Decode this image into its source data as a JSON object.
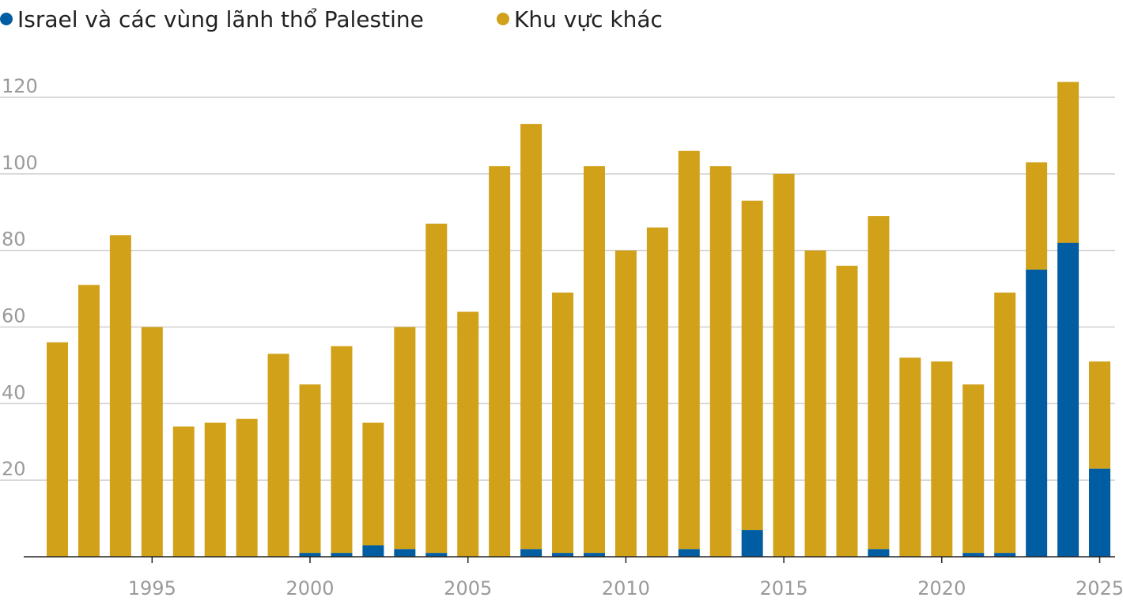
{
  "legend": {
    "israel_label": "Israel và các vùng lãnh thổ Palestine",
    "other_label": "Khu vực khác",
    "israel_color": "#005da2",
    "other_color": "#d1a11a"
  },
  "chart_data": {
    "type": "bar",
    "stacked": true,
    "categories": [
      1992,
      1993,
      1994,
      1995,
      1996,
      1997,
      1998,
      1999,
      2000,
      2001,
      2002,
      2003,
      2004,
      2005,
      2006,
      2007,
      2008,
      2009,
      2010,
      2011,
      2012,
      2013,
      2014,
      2015,
      2016,
      2017,
      2018,
      2019,
      2020,
      2021,
      2022,
      2023,
      2024,
      2025
    ],
    "series": [
      {
        "name": "Israel và các vùng lãnh thổ Palestine",
        "color": "#005da2",
        "values": [
          0,
          0,
          0,
          0,
          0,
          0,
          0,
          0,
          1,
          1,
          3,
          2,
          1,
          0,
          0,
          2,
          1,
          1,
          0,
          0,
          2,
          0,
          7,
          0,
          0,
          0,
          2,
          0,
          0,
          1,
          1,
          75,
          82,
          23
        ]
      },
      {
        "name": "Khu vực khác",
        "color": "#d1a11a",
        "values": [
          56,
          71,
          84,
          60,
          34,
          35,
          36,
          53,
          44,
          54,
          32,
          58,
          86,
          64,
          102,
          111,
          68,
          101,
          80,
          86,
          104,
          102,
          86,
          100,
          80,
          76,
          87,
          52,
          51,
          44,
          68,
          28,
          42,
          28
        ]
      }
    ],
    "ylim": [
      0,
      125
    ],
    "yticks": [
      20,
      40,
      60,
      80,
      100,
      120
    ],
    "xticks": [
      1995,
      2000,
      2005,
      2010,
      2015,
      2020,
      2025
    ],
    "grid": true,
    "legend_position": "top-left",
    "xlabel": "",
    "ylabel": ""
  }
}
